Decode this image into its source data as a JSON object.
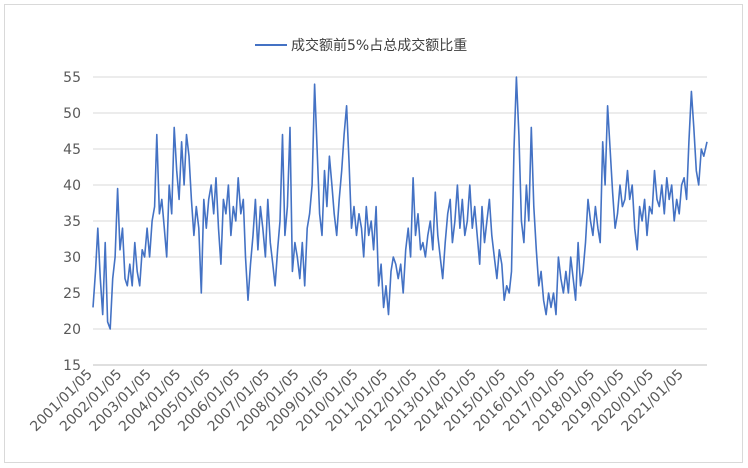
{
  "chart_data": {
    "type": "line",
    "title": "",
    "xlabel": "",
    "ylabel": "",
    "ylim": [
      15,
      55
    ],
    "yticks": [
      15,
      20,
      25,
      30,
      35,
      40,
      45,
      50,
      55
    ],
    "xlim": [
      "2001-01-05",
      "2021-10-15"
    ],
    "xticks": [
      "2001/01/05",
      "2002/01/05",
      "2003/01/05",
      "2004/01/05",
      "2005/01/05",
      "2006/01/05",
      "2007/01/05",
      "2008/01/05",
      "2009/01/05",
      "2010/01/05",
      "2011/01/05",
      "2012/01/05",
      "2013/01/05",
      "2014/01/05",
      "2015/01/05",
      "2016/01/05",
      "2017/01/05",
      "2018/01/05",
      "2019/01/05",
      "2020/01/05",
      "2021/01/05"
    ],
    "grid": "horizontal",
    "legend_position": "top-center",
    "colors": {
      "series": "#4472c4",
      "grid": "#d9d9d9",
      "axis": "#bfbfbf"
    },
    "series": [
      {
        "name": "成交额前5%占总成交额比重",
        "points": [
          [
            "2001-01-05",
            23
          ],
          [
            "2001-02-05",
            28
          ],
          [
            "2001-03-05",
            34
          ],
          [
            "2001-04-05",
            27
          ],
          [
            "2001-05-05",
            22
          ],
          [
            "2001-06-05",
            32
          ],
          [
            "2001-07-05",
            21
          ],
          [
            "2001-08-05",
            20
          ],
          [
            "2001-09-05",
            27
          ],
          [
            "2001-10-05",
            30
          ],
          [
            "2001-11-05",
            39.5
          ],
          [
            "2001-12-05",
            31
          ],
          [
            "2002-01-05",
            34
          ],
          [
            "2002-02-05",
            27
          ],
          [
            "2002-03-05",
            26
          ],
          [
            "2002-04-05",
            29
          ],
          [
            "2002-05-05",
            26
          ],
          [
            "2002-06-05",
            32
          ],
          [
            "2002-07-05",
            28
          ],
          [
            "2002-08-05",
            26
          ],
          [
            "2002-09-05",
            31
          ],
          [
            "2002-10-05",
            30
          ],
          [
            "2002-11-05",
            34
          ],
          [
            "2002-12-05",
            30
          ],
          [
            "2003-01-05",
            35
          ],
          [
            "2003-02-05",
            37
          ],
          [
            "2003-03-05",
            47
          ],
          [
            "2003-04-05",
            36
          ],
          [
            "2003-05-05",
            38
          ],
          [
            "2003-06-05",
            34
          ],
          [
            "2003-07-05",
            30
          ],
          [
            "2003-08-05",
            40
          ],
          [
            "2003-09-05",
            36
          ],
          [
            "2003-10-05",
            48
          ],
          [
            "2003-11-05",
            42
          ],
          [
            "2003-12-05",
            38
          ],
          [
            "2004-01-05",
            46
          ],
          [
            "2004-02-05",
            40
          ],
          [
            "2004-03-05",
            47
          ],
          [
            "2004-04-05",
            44
          ],
          [
            "2004-05-05",
            38
          ],
          [
            "2004-06-05",
            33
          ],
          [
            "2004-07-05",
            37
          ],
          [
            "2004-08-05",
            34
          ],
          [
            "2004-09-05",
            25
          ],
          [
            "2004-10-05",
            38
          ],
          [
            "2004-11-05",
            34
          ],
          [
            "2004-12-05",
            38
          ],
          [
            "2005-01-05",
            40
          ],
          [
            "2005-02-05",
            36
          ],
          [
            "2005-03-05",
            41
          ],
          [
            "2005-04-05",
            34
          ],
          [
            "2005-05-05",
            29
          ],
          [
            "2005-06-05",
            38
          ],
          [
            "2005-07-05",
            36
          ],
          [
            "2005-08-05",
            40
          ],
          [
            "2005-09-05",
            33
          ],
          [
            "2005-10-05",
            37
          ],
          [
            "2005-11-05",
            35
          ],
          [
            "2005-12-05",
            41
          ],
          [
            "2006-01-05",
            36
          ],
          [
            "2006-02-05",
            38
          ],
          [
            "2006-03-05",
            30
          ],
          [
            "2006-04-05",
            24
          ],
          [
            "2006-05-05",
            29
          ],
          [
            "2006-06-05",
            33
          ],
          [
            "2006-07-05",
            38
          ],
          [
            "2006-08-05",
            31
          ],
          [
            "2006-09-05",
            37
          ],
          [
            "2006-10-05",
            34
          ],
          [
            "2006-11-05",
            30
          ],
          [
            "2006-12-05",
            38
          ],
          [
            "2007-01-05",
            32
          ],
          [
            "2007-02-05",
            29
          ],
          [
            "2007-03-05",
            26
          ],
          [
            "2007-04-05",
            31
          ],
          [
            "2007-05-05",
            35
          ],
          [
            "2007-06-05",
            47
          ],
          [
            "2007-07-05",
            33
          ],
          [
            "2007-08-05",
            37
          ],
          [
            "2007-09-05",
            48
          ],
          [
            "2007-10-05",
            28
          ],
          [
            "2007-11-05",
            32
          ],
          [
            "2007-12-05",
            30
          ],
          [
            "2008-01-05",
            27
          ],
          [
            "2008-02-05",
            32
          ],
          [
            "2008-03-05",
            26
          ],
          [
            "2008-04-05",
            34
          ],
          [
            "2008-05-05",
            36
          ],
          [
            "2008-06-05",
            40
          ],
          [
            "2008-07-05",
            54
          ],
          [
            "2008-08-05",
            45
          ],
          [
            "2008-09-05",
            36
          ],
          [
            "2008-10-05",
            33
          ],
          [
            "2008-11-05",
            42
          ],
          [
            "2008-12-05",
            37
          ],
          [
            "2009-01-05",
            44
          ],
          [
            "2009-02-05",
            40
          ],
          [
            "2009-03-05",
            36
          ],
          [
            "2009-04-05",
            33
          ],
          [
            "2009-05-05",
            38
          ],
          [
            "2009-06-05",
            42
          ],
          [
            "2009-07-05",
            47
          ],
          [
            "2009-08-05",
            51
          ],
          [
            "2009-09-05",
            43
          ],
          [
            "2009-10-05",
            34
          ],
          [
            "2009-11-05",
            37
          ],
          [
            "2009-12-05",
            33
          ],
          [
            "2010-01-05",
            36
          ],
          [
            "2010-02-05",
            34
          ],
          [
            "2010-03-05",
            30
          ],
          [
            "2010-04-05",
            37
          ],
          [
            "2010-05-05",
            33
          ],
          [
            "2010-06-05",
            35
          ],
          [
            "2010-07-05",
            31
          ],
          [
            "2010-08-05",
            37
          ],
          [
            "2010-09-05",
            26
          ],
          [
            "2010-10-05",
            29
          ],
          [
            "2010-11-05",
            23
          ],
          [
            "2010-12-05",
            26
          ],
          [
            "2011-01-05",
            22
          ],
          [
            "2011-02-05",
            28
          ],
          [
            "2011-03-05",
            30
          ],
          [
            "2011-04-05",
            29
          ],
          [
            "2011-05-05",
            27
          ],
          [
            "2011-06-05",
            29
          ],
          [
            "2011-07-05",
            25
          ],
          [
            "2011-08-05",
            31
          ],
          [
            "2011-09-05",
            34
          ],
          [
            "2011-10-05",
            30
          ],
          [
            "2011-11-05",
            41
          ],
          [
            "2011-12-05",
            33
          ],
          [
            "2012-01-05",
            36
          ],
          [
            "2012-02-05",
            31
          ],
          [
            "2012-03-05",
            32
          ],
          [
            "2012-04-05",
            30
          ],
          [
            "2012-05-05",
            33
          ],
          [
            "2012-06-05",
            35
          ],
          [
            "2012-07-05",
            31
          ],
          [
            "2012-08-05",
            39
          ],
          [
            "2012-09-05",
            33
          ],
          [
            "2012-10-05",
            30
          ],
          [
            "2012-11-05",
            27
          ],
          [
            "2012-12-05",
            32
          ],
          [
            "2013-01-05",
            36
          ],
          [
            "2013-02-05",
            38
          ],
          [
            "2013-03-05",
            32
          ],
          [
            "2013-04-05",
            35
          ],
          [
            "2013-05-05",
            40
          ],
          [
            "2013-06-05",
            34
          ],
          [
            "2013-07-05",
            38
          ],
          [
            "2013-08-05",
            33
          ],
          [
            "2013-09-05",
            35
          ],
          [
            "2013-10-05",
            40
          ],
          [
            "2013-11-05",
            34
          ],
          [
            "2013-12-05",
            37
          ],
          [
            "2014-01-05",
            33
          ],
          [
            "2014-02-05",
            29
          ],
          [
            "2014-03-05",
            37
          ],
          [
            "2014-04-05",
            32
          ],
          [
            "2014-05-05",
            35
          ],
          [
            "2014-06-05",
            38
          ],
          [
            "2014-07-05",
            33
          ],
          [
            "2014-08-05",
            30
          ],
          [
            "2014-09-05",
            27
          ],
          [
            "2014-10-05",
            31
          ],
          [
            "2014-11-05",
            29
          ],
          [
            "2014-12-05",
            24
          ],
          [
            "2015-01-05",
            26
          ],
          [
            "2015-02-05",
            25
          ],
          [
            "2015-03-05",
            28
          ],
          [
            "2015-04-05",
            45
          ],
          [
            "2015-05-05",
            55
          ],
          [
            "2015-06-05",
            47
          ],
          [
            "2015-07-05",
            35
          ],
          [
            "2015-08-05",
            32
          ],
          [
            "2015-09-05",
            40
          ],
          [
            "2015-10-05",
            35
          ],
          [
            "2015-11-05",
            48
          ],
          [
            "2015-12-05",
            37
          ],
          [
            "2016-01-05",
            31
          ],
          [
            "2016-02-05",
            26
          ],
          [
            "2016-03-05",
            28
          ],
          [
            "2016-04-05",
            24
          ],
          [
            "2016-05-05",
            22
          ],
          [
            "2016-06-05",
            25
          ],
          [
            "2016-07-05",
            23
          ],
          [
            "2016-08-05",
            25
          ],
          [
            "2016-09-05",
            22
          ],
          [
            "2016-10-05",
            30
          ],
          [
            "2016-11-05",
            27
          ],
          [
            "2016-12-05",
            25
          ],
          [
            "2017-01-05",
            28
          ],
          [
            "2017-02-05",
            25
          ],
          [
            "2017-03-05",
            30
          ],
          [
            "2017-04-05",
            27
          ],
          [
            "2017-05-05",
            24
          ],
          [
            "2017-06-05",
            32
          ],
          [
            "2017-07-05",
            26
          ],
          [
            "2017-08-05",
            28
          ],
          [
            "2017-09-05",
            32
          ],
          [
            "2017-10-05",
            38
          ],
          [
            "2017-11-05",
            35
          ],
          [
            "2017-12-05",
            33
          ],
          [
            "2018-01-05",
            37
          ],
          [
            "2018-02-05",
            34
          ],
          [
            "2018-03-05",
            32
          ],
          [
            "2018-04-05",
            46
          ],
          [
            "2018-05-05",
            40
          ],
          [
            "2018-06-05",
            51
          ],
          [
            "2018-07-05",
            45
          ],
          [
            "2018-08-05",
            39
          ],
          [
            "2018-09-05",
            34
          ],
          [
            "2018-10-05",
            36
          ],
          [
            "2018-11-05",
            40
          ],
          [
            "2018-12-05",
            37
          ],
          [
            "2019-01-05",
            38
          ],
          [
            "2019-02-05",
            42
          ],
          [
            "2019-03-05",
            38
          ],
          [
            "2019-04-05",
            40
          ],
          [
            "2019-05-05",
            34
          ],
          [
            "2019-06-05",
            31
          ],
          [
            "2019-07-05",
            37
          ],
          [
            "2019-08-05",
            35
          ],
          [
            "2019-09-05",
            38
          ],
          [
            "2019-10-05",
            33
          ],
          [
            "2019-11-05",
            37
          ],
          [
            "2019-12-05",
            36
          ],
          [
            "2020-01-05",
            42
          ],
          [
            "2020-02-05",
            38
          ],
          [
            "2020-03-05",
            37
          ],
          [
            "2020-04-05",
            40
          ],
          [
            "2020-05-05",
            36
          ],
          [
            "2020-06-05",
            41
          ],
          [
            "2020-07-05",
            38
          ],
          [
            "2020-08-05",
            40
          ],
          [
            "2020-09-05",
            35
          ],
          [
            "2020-10-05",
            38
          ],
          [
            "2020-11-05",
            36
          ],
          [
            "2020-12-05",
            40
          ],
          [
            "2021-01-05",
            41
          ],
          [
            "2021-02-05",
            38
          ],
          [
            "2021-03-05",
            46
          ],
          [
            "2021-04-05",
            53
          ],
          [
            "2021-05-05",
            48
          ],
          [
            "2021-06-05",
            42
          ],
          [
            "2021-07-05",
            40
          ],
          [
            "2021-08-05",
            45
          ],
          [
            "2021-09-05",
            44
          ],
          [
            "2021-10-15",
            46
          ]
        ]
      }
    ]
  }
}
